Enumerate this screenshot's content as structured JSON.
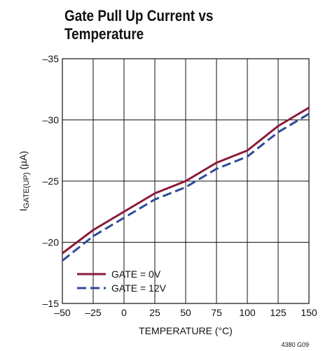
{
  "chart_data": {
    "type": "line",
    "title_lines": [
      "Gate Pull Up Current vs",
      "Temperature"
    ],
    "xlabel": "TEMPERATURE (°C)",
    "ylabel": "IGATE(UP) (µA)",
    "ylabel_main": "I",
    "ylabel_sub": "GATE(UP)",
    "ylabel_rest": " (µA)",
    "x": [
      -50,
      -25,
      0,
      25,
      50,
      75,
      100,
      125,
      150
    ],
    "xlim": [
      -50,
      150
    ],
    "ylim": [
      -15,
      -35
    ],
    "x_ticks": [
      "–50",
      "–25",
      "0",
      "25",
      "50",
      "75",
      "100",
      "125",
      "150"
    ],
    "y_ticks": [
      "–35",
      "–30",
      "–25",
      "–20",
      "–15"
    ],
    "y_tick_values": [
      -35,
      -30,
      -25,
      -20,
      -15
    ],
    "grid": true,
    "legend_position": "bottom-left",
    "series": [
      {
        "name": "GATE = 0V",
        "style": "solid",
        "color": "#8b1a3a",
        "values": [
          -19.1,
          -21.0,
          -22.5,
          -24.0,
          -25.0,
          -26.5,
          -27.5,
          -29.5,
          -31.0
        ]
      },
      {
        "name": "GATE = 12V",
        "style": "dashed",
        "color": "#2e4a9a",
        "values": [
          -18.5,
          -20.5,
          -22.0,
          -23.5,
          -24.5,
          -26.0,
          -27.0,
          -29.0,
          -30.5
        ]
      }
    ],
    "figure_code": "4380 G09"
  }
}
